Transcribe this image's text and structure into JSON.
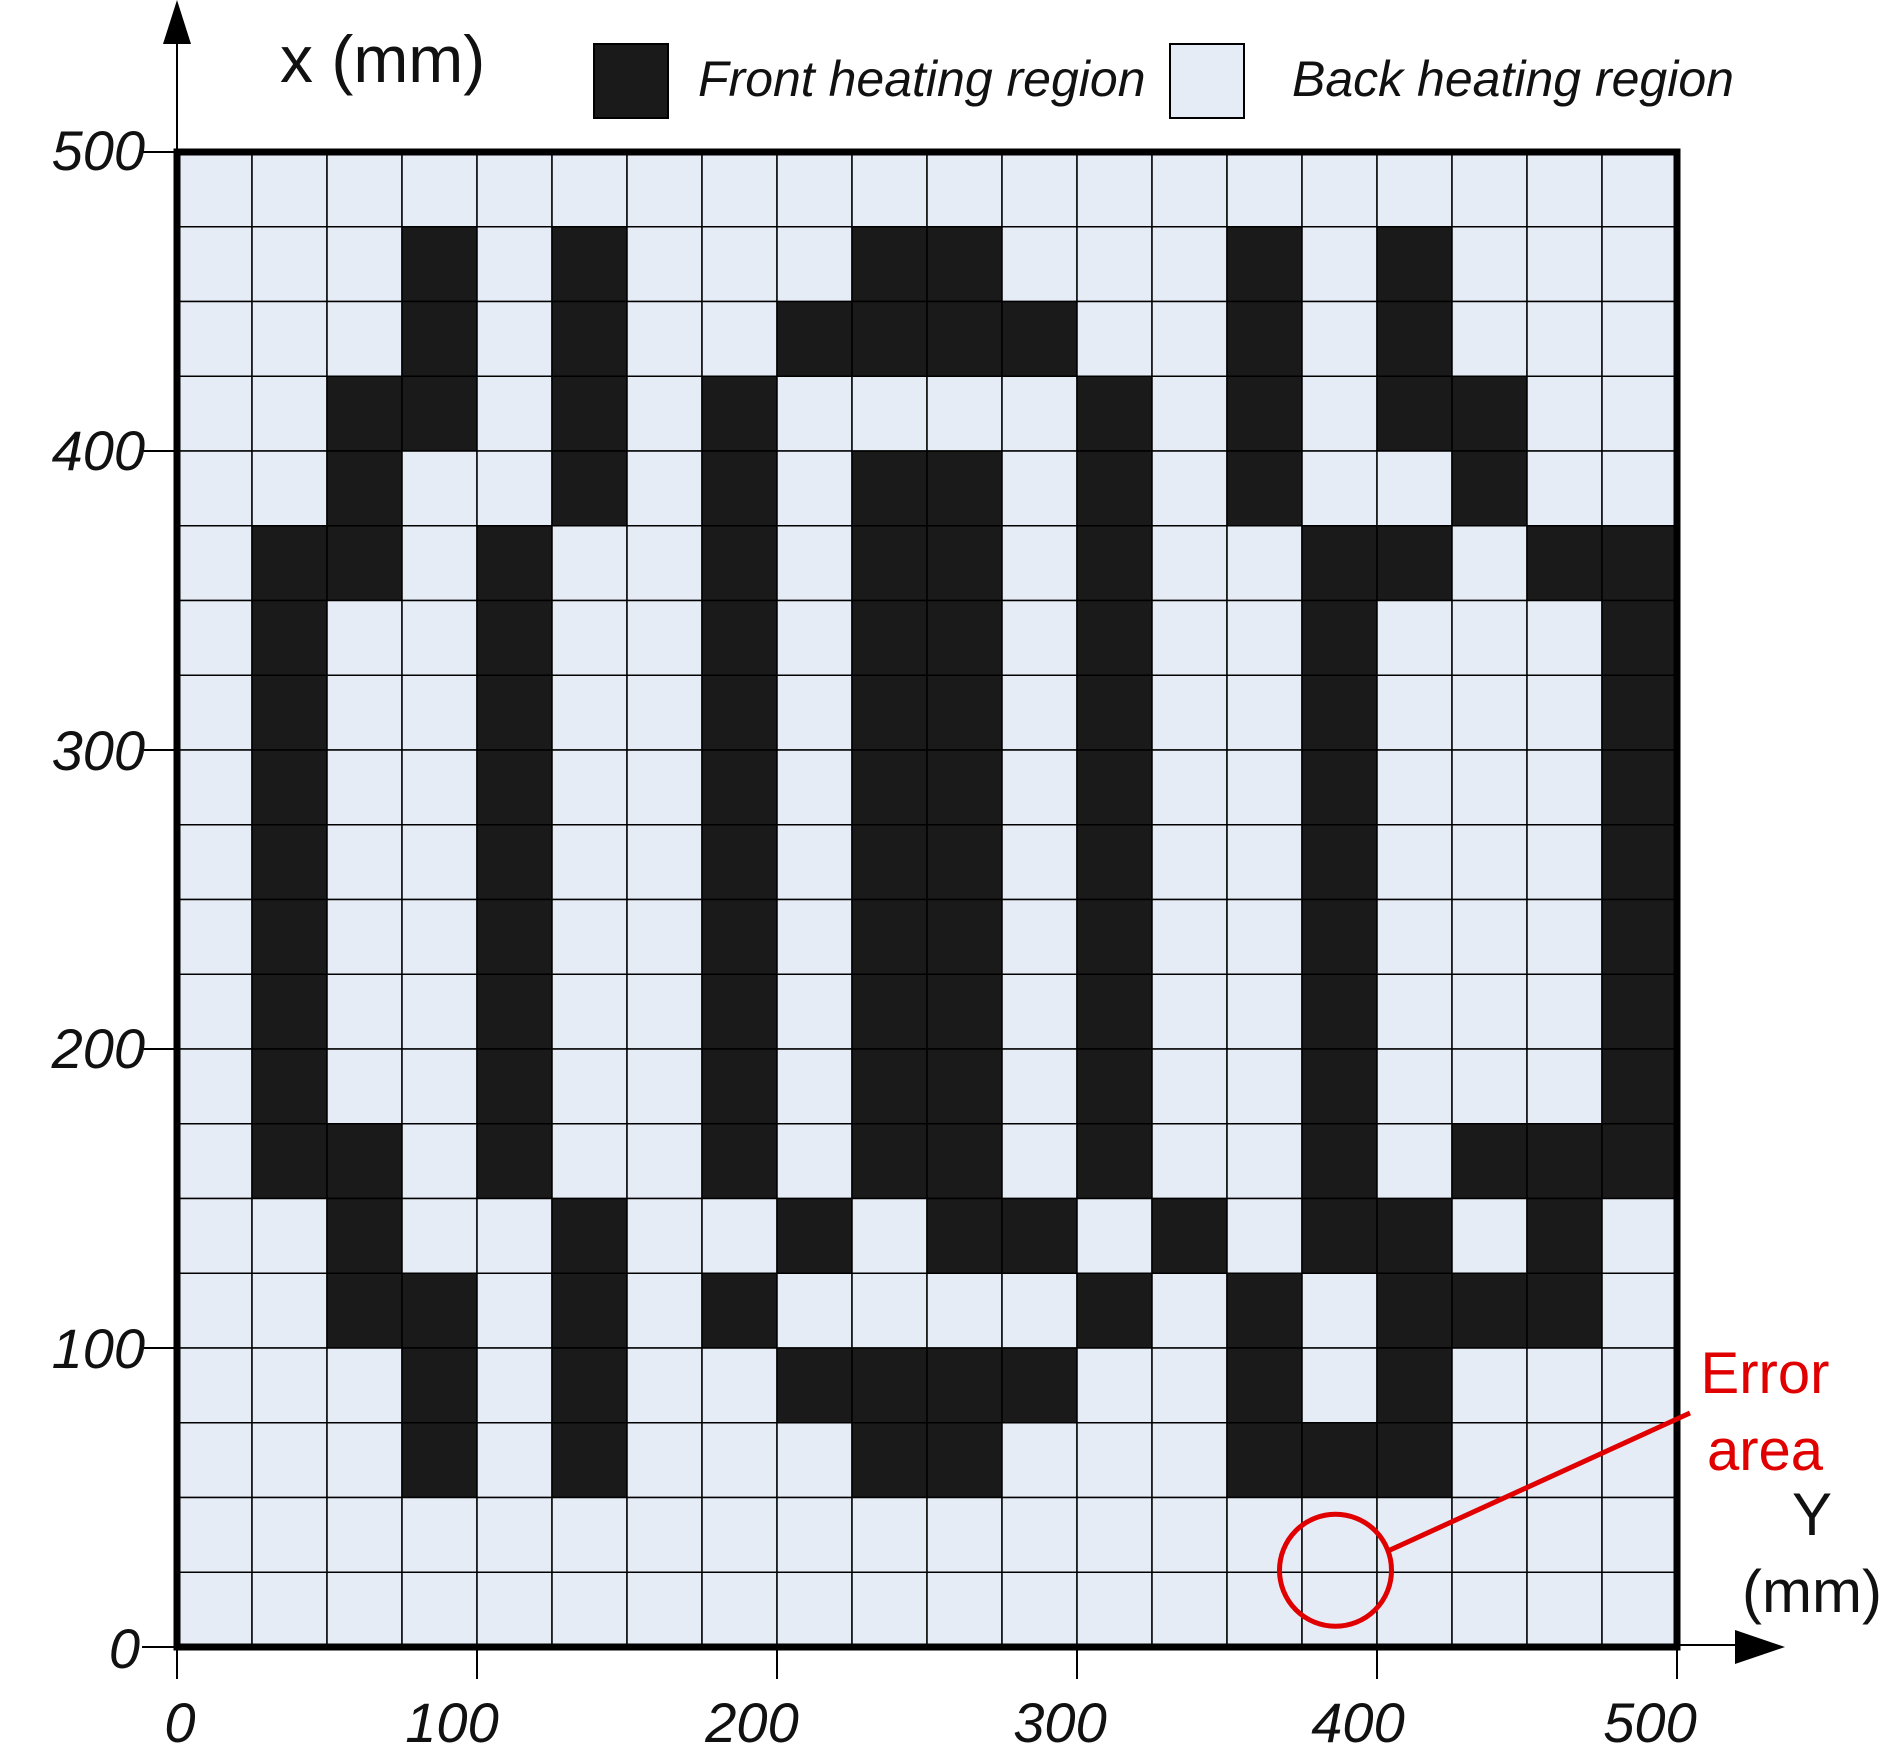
{
  "axes": {
    "x_axis_title": "x (mm)",
    "y_axis_title_line1": "Y",
    "y_axis_title_line2": "(mm)",
    "left_ticks": [
      "0",
      "100",
      "200",
      "300",
      "400",
      "500"
    ],
    "bottom_ticks": [
      "0",
      "100",
      "200",
      "300",
      "400",
      "500"
    ]
  },
  "legend": {
    "items": [
      {
        "label": "Front heating region",
        "color": "#1a1a1a"
      },
      {
        "label": "Back heating region",
        "color": "#e6ecf6"
      }
    ]
  },
  "annotation": {
    "line1": "Error",
    "line2": "area",
    "color": "#e00000",
    "cell_row": 19,
    "cell_col": 15
  },
  "colors": {
    "front": "#1a1a1a",
    "back": "#e6ecf6",
    "grid": "#000000",
    "border": "#000000"
  },
  "grid": {
    "rows": 20,
    "cols": 20,
    "cells": [
      "00000000000000000000",
      "00010100011000101000",
      "00010100111100101000",
      "00110101000010101100",
      "00100101011010100100",
      "01101001011010011011",
      "01001001011010010001",
      "01001001011010010001",
      "01001001011010010001",
      "01001001011010010001",
      "01001001011010010001",
      "01001001011010010001",
      "01001001011010010001",
      "01101001011010010111",
      "00100100101101011010",
      "00110101000010101110",
      "00010100111100101000",
      "00010100011000111000",
      "00000000000000000000",
      "00000000000000000000"
    ]
  }
}
